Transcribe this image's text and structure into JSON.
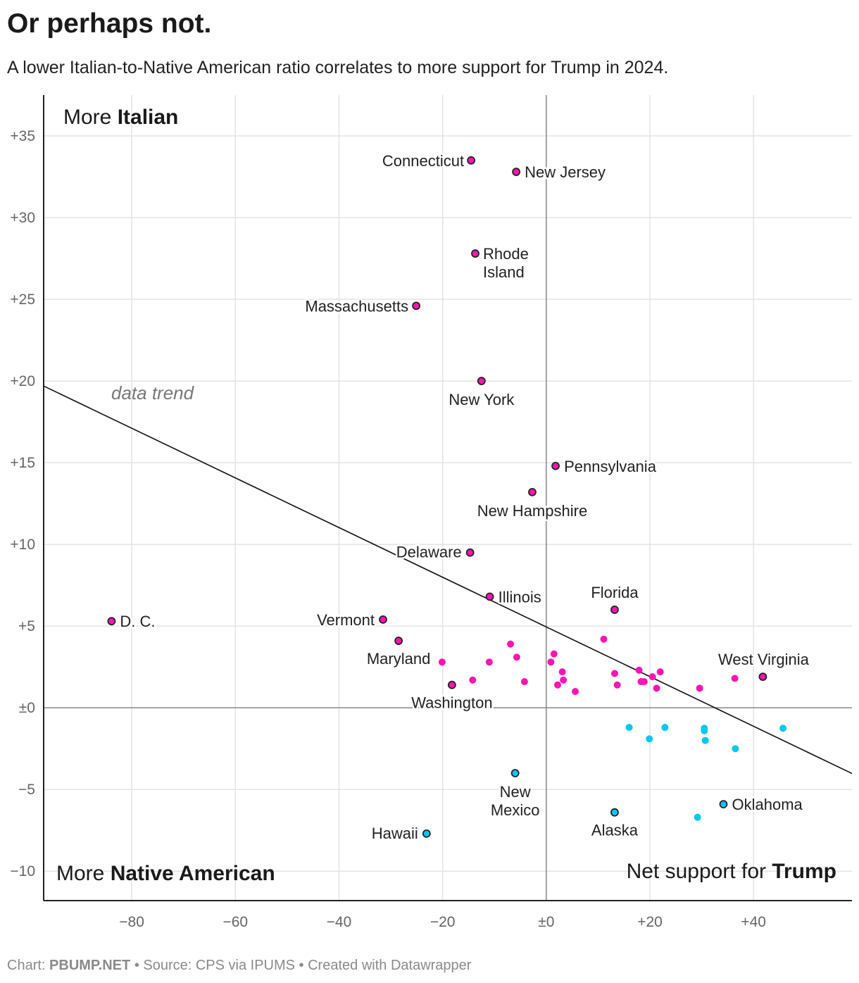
{
  "title": "Or perhaps not.",
  "subtitle": "A lower Italian-to-Native American ratio correlates to more support for Trump in 2024.",
  "footer": {
    "chart_label": "Chart:",
    "chart_by": "PBUMP.NET",
    "source": "• Source: CPS via IPUMS • Created with Datawrapper"
  },
  "colors": {
    "italian": "#ff14b4",
    "native": "#00c8f5",
    "trend": "#111111"
  },
  "chart_data": {
    "type": "scatter",
    "xlim": [
      -97,
      59
    ],
    "ylim": [
      -11.8,
      37.5
    ],
    "grid": true,
    "x_ticks": [
      {
        "v": -80,
        "label": "−80"
      },
      {
        "v": -60,
        "label": "−60"
      },
      {
        "v": -40,
        "label": "−40"
      },
      {
        "v": -20,
        "label": "−20"
      },
      {
        "v": 0,
        "label": "±0"
      },
      {
        "v": 20,
        "label": "+20"
      },
      {
        "v": 40,
        "label": "+40"
      }
    ],
    "y_ticks": [
      {
        "v": 35,
        "label": "+35"
      },
      {
        "v": 30,
        "label": "+30"
      },
      {
        "v": 25,
        "label": "+25"
      },
      {
        "v": 20,
        "label": "+20"
      },
      {
        "v": 15,
        "label": "+15"
      },
      {
        "v": 10,
        "label": "+10"
      },
      {
        "v": 5,
        "label": "+5"
      },
      {
        "v": 0,
        "label": "±0"
      },
      {
        "v": -5,
        "label": "−5"
      },
      {
        "v": -10,
        "label": "−10"
      }
    ],
    "corner_labels": {
      "top_left": {
        "prefix": "More ",
        "bold": "Italian"
      },
      "bottom_left": {
        "prefix": "More ",
        "bold": "Native American"
      },
      "bottom_right": {
        "prefix": "Net support for ",
        "bold": "Trump"
      }
    },
    "trend": {
      "label": "data trend",
      "intercept": 4.95,
      "slope": -0.152
    },
    "points": [
      {
        "name": "Connecticut",
        "x": -14.5,
        "y": 33.5
      },
      {
        "name": "New Jersey",
        "x": -5.8,
        "y": 32.8
      },
      {
        "name": "Rhode Island",
        "x": -13.7,
        "y": 27.8
      },
      {
        "name": "Massachusetts",
        "x": -25.1,
        "y": 24.6
      },
      {
        "name": "New York",
        "x": -12.5,
        "y": 20.0
      },
      {
        "name": "Pennsylvania",
        "x": 1.8,
        "y": 14.8
      },
      {
        "name": "New Hampshire",
        "x": -2.7,
        "y": 13.2
      },
      {
        "name": "Delaware",
        "x": -14.7,
        "y": 9.5
      },
      {
        "name": "Illinois",
        "x": -10.9,
        "y": 6.8
      },
      {
        "name": "Florida",
        "x": 13.2,
        "y": 6.0
      },
      {
        "name": "D. C.",
        "x": -83.9,
        "y": 5.3
      },
      {
        "name": "Vermont",
        "x": -31.5,
        "y": 5.4
      },
      {
        "name": "Maryland",
        "x": -28.5,
        "y": 4.1
      },
      {
        "name": "Washington",
        "x": -18.2,
        "y": 1.4
      },
      {
        "name": "West Virginia",
        "x": 41.8,
        "y": 1.9
      },
      {
        "name": "New Mexico",
        "x": -6.0,
        "y": -4.0
      },
      {
        "name": "Alaska",
        "x": 13.2,
        "y": -6.4
      },
      {
        "name": "Oklahoma",
        "x": 34.2,
        "y": -5.9
      },
      {
        "name": "Hawaii",
        "x": -23.1,
        "y": -7.7
      },
      {
        "name": "",
        "x": 29.2,
        "y": -6.7
      },
      {
        "name": "",
        "x": -20.1,
        "y": 2.8
      },
      {
        "name": "",
        "x": -11.0,
        "y": 2.8
      },
      {
        "name": "",
        "x": -6.9,
        "y": 3.9
      },
      {
        "name": "",
        "x": -5.7,
        "y": 3.1
      },
      {
        "name": "",
        "x": -14.2,
        "y": 1.7
      },
      {
        "name": "",
        "x": -4.2,
        "y": 1.6
      },
      {
        "name": "",
        "x": 1.5,
        "y": 3.3
      },
      {
        "name": "",
        "x": 0.9,
        "y": 2.8
      },
      {
        "name": "",
        "x": 3.1,
        "y": 2.2
      },
      {
        "name": "",
        "x": 3.3,
        "y": 1.7
      },
      {
        "name": "",
        "x": 2.2,
        "y": 1.4
      },
      {
        "name": "",
        "x": 5.6,
        "y": 1.0
      },
      {
        "name": "",
        "x": 11.1,
        "y": 4.2
      },
      {
        "name": "",
        "x": 13.2,
        "y": 2.1
      },
      {
        "name": "",
        "x": 13.7,
        "y": 1.4
      },
      {
        "name": "",
        "x": 17.9,
        "y": 2.3
      },
      {
        "name": "",
        "x": 22.0,
        "y": 2.2
      },
      {
        "name": "",
        "x": 20.5,
        "y": 1.9
      },
      {
        "name": "",
        "x": 18.9,
        "y": 1.6
      },
      {
        "name": "",
        "x": 18.3,
        "y": 1.6
      },
      {
        "name": "",
        "x": 21.3,
        "y": 1.2
      },
      {
        "name": "",
        "x": 29.6,
        "y": 1.2
      },
      {
        "name": "",
        "x": 36.4,
        "y": 1.8
      },
      {
        "name": "",
        "x": 16.0,
        "y": -1.2
      },
      {
        "name": "",
        "x": 19.9,
        "y": -1.9
      },
      {
        "name": "",
        "x": 22.9,
        "y": -1.2
      },
      {
        "name": "",
        "x": 30.5,
        "y": -1.25
      },
      {
        "name": "",
        "x": 30.5,
        "y": -1.4
      },
      {
        "name": "",
        "x": 30.7,
        "y": -2.0
      },
      {
        "name": "",
        "x": 36.5,
        "y": -2.5
      },
      {
        "name": "",
        "x": 45.7,
        "y": -1.25
      }
    ]
  }
}
